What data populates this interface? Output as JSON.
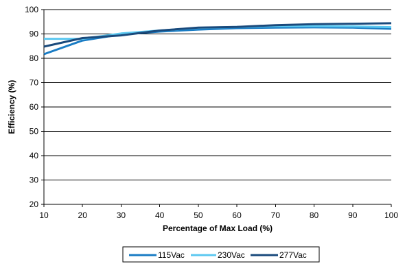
{
  "chart_data": {
    "type": "line",
    "xlabel": "Percentage of Max Load (%)",
    "ylabel": "Efficiency (%)",
    "xlim": [
      10,
      100
    ],
    "ylim": [
      20,
      100
    ],
    "x_ticks": [
      10,
      20,
      30,
      40,
      50,
      60,
      70,
      80,
      90,
      100
    ],
    "y_ticks": [
      20,
      30,
      40,
      50,
      60,
      70,
      80,
      90,
      100
    ],
    "grid": "horizontal",
    "legend_position": "bottom",
    "x": [
      10,
      20,
      30,
      40,
      50,
      60,
      70,
      80,
      90,
      100
    ],
    "series": [
      {
        "name": "115Vac",
        "color": "#1a7cc4",
        "values": [
          81.7,
          87.3,
          89.8,
          91.0,
          91.8,
          92.4,
          92.6,
          92.7,
          92.6,
          92.1
        ]
      },
      {
        "name": "230Vac",
        "color": "#5cc8f0",
        "values": [
          88.0,
          88.0,
          90.2,
          91.4,
          92.5,
          92.9,
          93.2,
          93.2,
          93.1,
          92.8
        ]
      },
      {
        "name": "277Vac",
        "color": "#1a4a7c",
        "values": [
          84.8,
          88.3,
          89.4,
          91.4,
          92.6,
          92.9,
          93.6,
          94.0,
          94.2,
          94.4
        ]
      }
    ]
  }
}
